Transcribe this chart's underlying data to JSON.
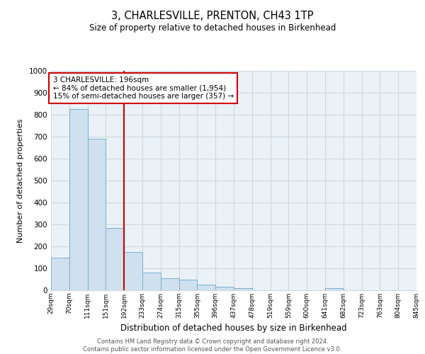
{
  "title": "3, CHARLESVILLE, PRENTON, CH43 1TP",
  "subtitle": "Size of property relative to detached houses in Birkenhead",
  "xlabel": "Distribution of detached houses by size in Birkenhead",
  "ylabel": "Number of detached properties",
  "bin_labels": [
    "29sqm",
    "70sqm",
    "111sqm",
    "151sqm",
    "192sqm",
    "233sqm",
    "274sqm",
    "315sqm",
    "355sqm",
    "396sqm",
    "437sqm",
    "478sqm",
    "519sqm",
    "559sqm",
    "600sqm",
    "641sqm",
    "682sqm",
    "723sqm",
    "763sqm",
    "804sqm",
    "845sqm"
  ],
  "bar_heights": [
    150,
    825,
    690,
    285,
    175,
    80,
    55,
    50,
    25,
    15,
    10,
    0,
    0,
    0,
    0,
    10,
    0,
    0,
    0,
    0,
    0
  ],
  "bar_color": "#cfe0ef",
  "bar_edge_color": "#7ab0cc",
  "vline_x_index": 4,
  "vline_color": "#cc0000",
  "ylim": [
    0,
    1000
  ],
  "yticks": [
    0,
    100,
    200,
    300,
    400,
    500,
    600,
    700,
    800,
    900,
    1000
  ],
  "annotation_text": "3 CHARLESVILLE: 196sqm\n← 84% of detached houses are smaller (1,954)\n15% of semi-detached houses are larger (357) →",
  "annotation_box_color": "#ffffff",
  "annotation_box_edge": "#cc0000",
  "grid_color": "#d0d8e0",
  "bg_color": "#eaf2f8",
  "footer_line1": "Contains HM Land Registry data © Crown copyright and database right 2024.",
  "footer_line2": "Contains public sector information licensed under the Open Government Licence v3.0."
}
